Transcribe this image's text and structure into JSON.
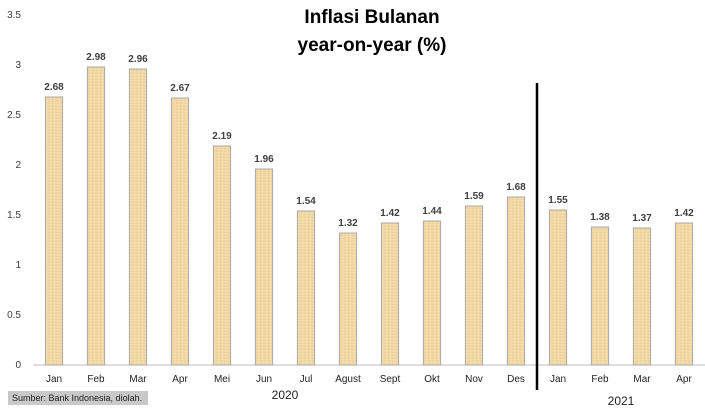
{
  "chart_data": {
    "type": "bar",
    "title": "Inflasi Bulanan",
    "subtitle": "year-on-year (%)",
    "categories": [
      "Jan",
      "Feb",
      "Mar",
      "Apr",
      "Mei",
      "Jun",
      "Jul",
      "Agust",
      "Sept",
      "Okt",
      "Nov",
      "Des",
      "Jan",
      "Feb",
      "Mar",
      "Apr"
    ],
    "values": [
      2.68,
      2.98,
      2.96,
      2.67,
      2.19,
      1.96,
      1.54,
      1.32,
      1.42,
      1.44,
      1.59,
      1.68,
      1.55,
      1.38,
      1.37,
      1.42
    ],
    "value_labels": [
      "2.68",
      "2.98",
      "2.96",
      "2.67",
      "2.19",
      "1.96",
      "1.54",
      "1.32",
      "1.42",
      "1.44",
      "1.59",
      "1.68",
      "1.55",
      "1.38",
      "1.37",
      "1.42"
    ],
    "yticks": [
      "0",
      "0.5",
      "1",
      "1.5",
      "2",
      "2.5",
      "3",
      "3.5"
    ],
    "ylim": [
      0,
      3.5
    ],
    "groups": [
      {
        "label": "2020",
        "from": 0,
        "to": 11
      },
      {
        "label": "2021",
        "from": 12,
        "to": 15
      }
    ],
    "grid": false,
    "legend": "none",
    "colors": {
      "bar_fill": "#f2d9a4",
      "bar_stroke": "#a8a8a8",
      "separator": "#000000"
    }
  },
  "source": "Sumber: Bank Indonesia, diolah."
}
